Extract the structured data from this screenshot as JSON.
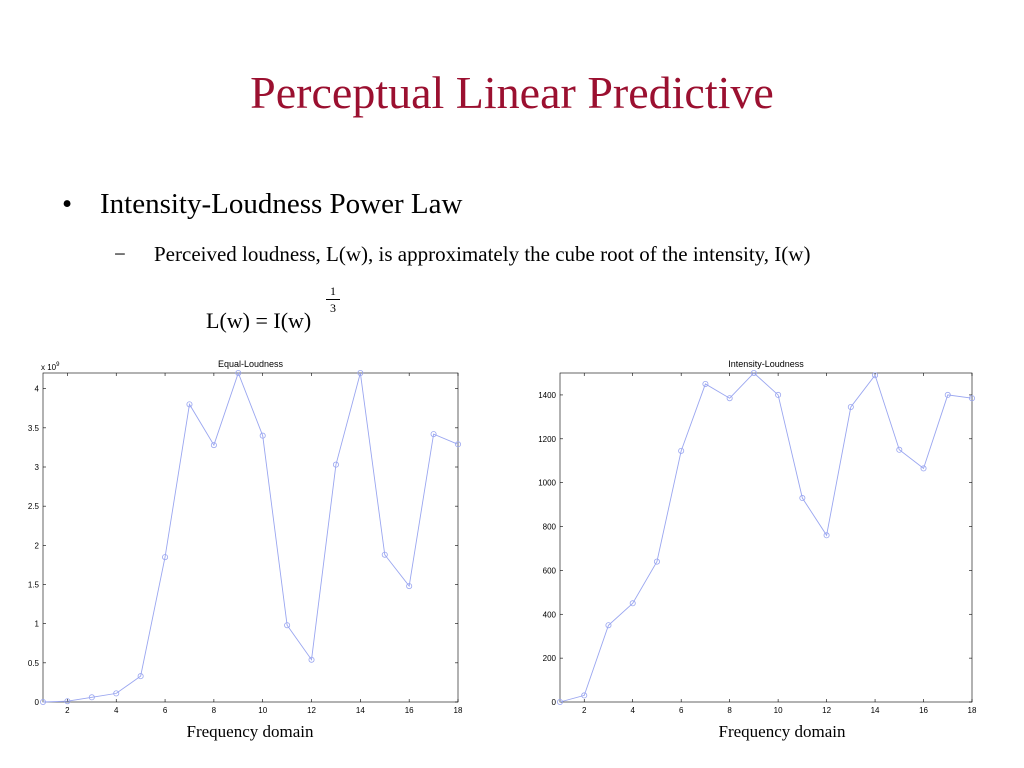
{
  "slide": {
    "title": "Perceptual Linear Predictive",
    "bullet_marker": "•",
    "bullet": "Intensity-Loudness Power Law",
    "sub_marker": "−",
    "sub_bullet": "Perceived loudness, L(w), is approximately the cube root of  the intensity, I(w)",
    "formula": "L(w) = I(w)",
    "exponent_numerator": "1",
    "exponent_denominator": "3"
  },
  "colors": {
    "title": "#9b1030",
    "series": "#9aa6f0",
    "frame": "#000000"
  },
  "chart_data": [
    {
      "type": "line",
      "title": "Equal-Loudness",
      "xlabel": "Frequency domain",
      "ylabel": "",
      "scale_note_base": "x 10",
      "scale_note_exp": "9",
      "x": [
        1,
        2,
        3,
        4,
        5,
        6,
        7,
        8,
        9,
        10,
        11,
        12,
        13,
        14,
        15,
        16,
        17,
        18
      ],
      "series": [
        {
          "values": [
            0.0,
            0.01,
            0.06,
            0.11,
            0.33,
            1.85,
            3.8,
            3.28,
            4.2,
            3.4,
            0.98,
            0.54,
            3.03,
            4.2,
            1.88,
            1.48,
            3.42,
            3.29
          ]
        }
      ],
      "xlim": [
        1,
        18
      ],
      "ylim": [
        0,
        4.2
      ],
      "xticks": [
        2,
        4,
        6,
        8,
        10,
        12,
        14,
        16,
        18
      ],
      "yticks": [
        0,
        0.5,
        1,
        1.5,
        2,
        2.5,
        3,
        3.5,
        4
      ],
      "ytick_labels": [
        "0",
        "0.5",
        "1",
        "1.5",
        "2",
        "2.5",
        "3",
        "3.5",
        "4"
      ],
      "grid": false,
      "marker": "circle"
    },
    {
      "type": "line",
      "title": "Intensity-Loudness",
      "xlabel": "Frequency domain",
      "ylabel": "",
      "x": [
        1,
        2,
        3,
        4,
        5,
        6,
        7,
        8,
        9,
        10,
        11,
        12,
        13,
        14,
        15,
        16,
        17,
        18
      ],
      "series": [
        {
          "values": [
            0,
            30,
            350,
            450,
            640,
            1145,
            1450,
            1385,
            1500,
            1400,
            930,
            760,
            1345,
            1490,
            1150,
            1065,
            1400,
            1385
          ]
        }
      ],
      "xlim": [
        1,
        18
      ],
      "ylim": [
        0,
        1500
      ],
      "xticks": [
        2,
        4,
        6,
        8,
        10,
        12,
        14,
        16,
        18
      ],
      "yticks": [
        0,
        200,
        400,
        600,
        800,
        1000,
        1200,
        1400
      ],
      "ytick_labels": [
        "0",
        "200",
        "400",
        "600",
        "800",
        "1000",
        "1200",
        "1400"
      ],
      "grid": false,
      "marker": "circle"
    }
  ]
}
